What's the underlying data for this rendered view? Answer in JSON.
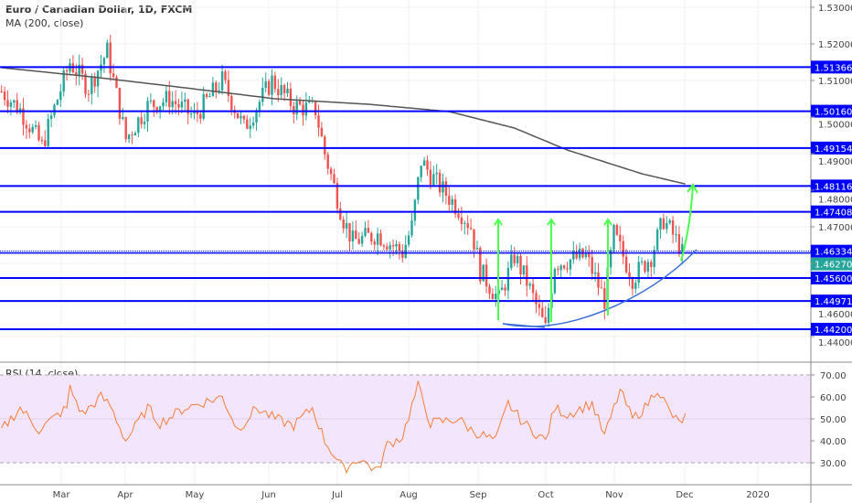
{
  "header": {
    "title": "Euro / Canadian Dollar, 1D, FXCM",
    "ma_label": "MA (200, close)",
    "rsi_label": "RSI (14, close)"
  },
  "colors": {
    "up": "#26a69a",
    "down": "#ef5350",
    "level": "#0000ff",
    "ma": "#555555",
    "rsi": "#f57c3a",
    "rsi_band": "#f3e6fc",
    "arrow": "#4cff4c",
    "curve": "#3a6fd8",
    "last_price": "#26a69a"
  },
  "chart_data": {
    "type": "candlestick",
    "symbol": "EURCAD",
    "price_axis": {
      "ticks": [
        "1.53000",
        "1.52000",
        "1.51000",
        "1.50000",
        "1.49000",
        "1.48000",
        "1.47000",
        "1.46000",
        "1.44000"
      ],
      "range": [
        1.4375,
        1.5325
      ]
    },
    "time_axis": {
      "ticks": [
        "Mar",
        "Apr",
        "May",
        "Jun",
        "Jul",
        "Aug",
        "Sep",
        "Oct",
        "Nov",
        "Dec",
        "2020"
      ]
    },
    "levels": [
      "1.51366",
      "1.50160",
      "1.49154",
      "1.48116",
      "1.47408",
      "1.46334",
      "1.45600",
      "1.44971",
      "1.44200"
    ],
    "dotted_level": 1.46334,
    "last_price": "1.46270",
    "candle_count": 220,
    "close_path": [
      [
        0,
        1.507
      ],
      [
        6,
        1.502
      ],
      [
        13,
        1.492
      ],
      [
        18,
        1.505
      ],
      [
        22,
        1.515
      ],
      [
        28,
        1.508
      ],
      [
        34,
        1.518
      ],
      [
        40,
        1.494
      ],
      [
        47,
        1.503
      ],
      [
        54,
        1.505
      ],
      [
        62,
        1.5
      ],
      [
        71,
        1.51
      ],
      [
        78,
        1.497
      ],
      [
        87,
        1.51
      ],
      [
        94,
        1.503
      ],
      [
        101,
        1.502
      ],
      [
        104,
        1.49
      ],
      [
        110,
        1.472
      ],
      [
        113,
        1.466
      ],
      [
        121,
        1.468
      ],
      [
        129,
        1.463
      ],
      [
        132,
        1.47
      ],
      [
        135,
        1.488
      ],
      [
        140,
        1.482
      ],
      [
        147,
        1.475
      ],
      [
        151,
        1.47
      ],
      [
        154,
        1.458
      ],
      [
        160,
        1.45
      ],
      [
        165,
        1.462
      ],
      [
        169,
        1.455
      ],
      [
        175,
        1.442
      ],
      [
        178,
        1.46
      ],
      [
        188,
        1.462
      ],
      [
        194,
        1.45
      ],
      [
        197,
        1.468
      ],
      [
        203,
        1.456
      ],
      [
        209,
        1.462
      ],
      [
        213,
        1.472
      ],
      [
        218,
        1.465
      ],
      [
        219,
        1.4627
      ]
    ],
    "ma200_path": [
      [
        0,
        1.5135
      ],
      [
        29,
        1.511
      ],
      [
        59,
        1.508
      ],
      [
        88,
        1.505
      ],
      [
        118,
        1.5035
      ],
      [
        144,
        1.5015
      ],
      [
        165,
        1.497
      ],
      [
        182,
        1.491
      ],
      [
        206,
        1.4845
      ],
      [
        220,
        1.4817
      ]
    ],
    "rsi": {
      "ticks": [
        "70.00",
        "60.00",
        "50.00",
        "40.00",
        "30.00"
      ],
      "upper": 70,
      "lower": 30,
      "range": [
        25,
        75
      ],
      "path": [
        [
          0,
          45
        ],
        [
          6,
          55
        ],
        [
          12,
          45
        ],
        [
          21,
          55
        ],
        [
          22,
          64
        ],
        [
          26,
          52
        ],
        [
          32,
          60
        ],
        [
          35,
          56
        ],
        [
          40,
          40
        ],
        [
          47,
          55
        ],
        [
          51,
          48
        ],
        [
          59,
          55
        ],
        [
          71,
          60
        ],
        [
          76,
          45
        ],
        [
          82,
          55
        ],
        [
          88,
          50
        ],
        [
          94,
          47
        ],
        [
          100,
          55
        ],
        [
          104,
          40
        ],
        [
          110,
          27
        ],
        [
          115,
          32
        ],
        [
          121,
          26
        ],
        [
          124,
          38
        ],
        [
          129,
          42
        ],
        [
          134,
          65
        ],
        [
          138,
          48
        ],
        [
          147,
          50
        ],
        [
          151,
          45
        ],
        [
          154,
          43
        ],
        [
          159,
          40
        ],
        [
          163,
          57
        ],
        [
          168,
          48
        ],
        [
          175,
          40
        ],
        [
          178,
          55
        ],
        [
          182,
          52
        ],
        [
          190,
          57
        ],
        [
          194,
          42
        ],
        [
          199,
          63
        ],
        [
          203,
          50
        ],
        [
          207,
          55
        ],
        [
          211,
          64
        ],
        [
          215,
          53
        ],
        [
          218,
          48
        ],
        [
          220,
          51
        ]
      ]
    }
  }
}
